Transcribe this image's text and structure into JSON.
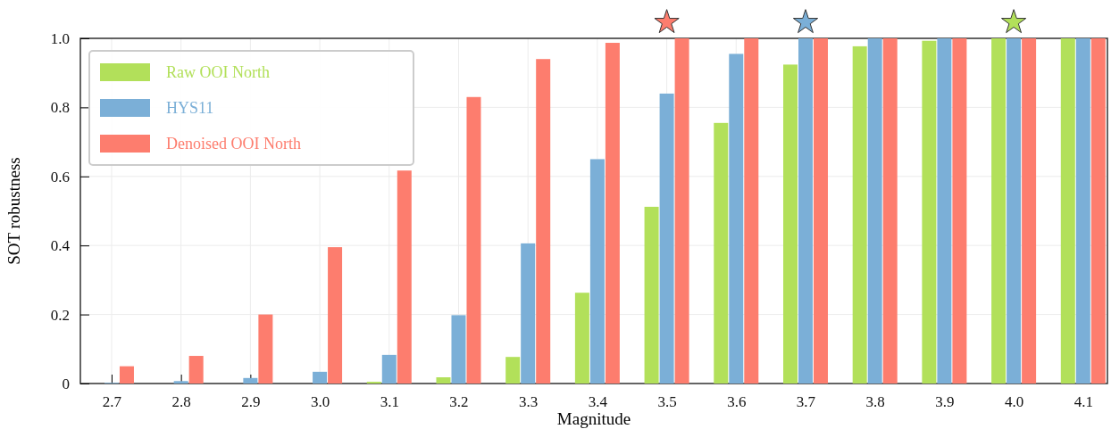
{
  "chart_data": {
    "type": "bar",
    "xlabel": "Magnitude",
    "ylabel": "SOT robustness",
    "categories": [
      "2.7",
      "2.8",
      "2.9",
      "3.0",
      "3.1",
      "3.2",
      "3.3",
      "3.4",
      "3.5",
      "3.6",
      "3.7",
      "3.8",
      "3.9",
      "4.0",
      "4.1"
    ],
    "series": [
      {
        "name": "Raw OOI North",
        "color": "#b2e05a",
        "values": [
          0,
          0,
          0,
          0,
          0.005,
          0.018,
          0.077,
          0.263,
          0.512,
          0.755,
          0.924,
          0.977,
          0.993,
          1,
          1
        ]
      },
      {
        "name": "HYS11",
        "color": "#7bafd7",
        "values": [
          0.002,
          0.007,
          0.016,
          0.034,
          0.083,
          0.198,
          0.406,
          0.65,
          0.84,
          0.955,
          1,
          1,
          1,
          1,
          1
        ]
      },
      {
        "name": "Denoised OOI North",
        "color": "#fd7d6e",
        "values": [
          0.05,
          0.08,
          0.2,
          0.395,
          0.617,
          0.83,
          0.94,
          0.987,
          1,
          1,
          1,
          1,
          1,
          1,
          1
        ]
      }
    ],
    "ylim": [
      0,
      1
    ],
    "yticks": [
      {
        "value": 0,
        "label": "0"
      },
      0.2,
      0.4,
      0.6,
      0.8,
      {
        "value": 1,
        "label": "1.0"
      }
    ],
    "grid": true,
    "legend": "top left"
  }
}
